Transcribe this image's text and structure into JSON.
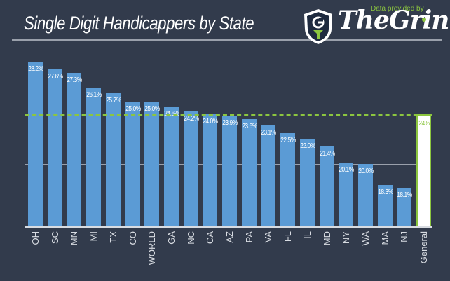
{
  "header": {
    "title": "Single Digit Handicappers by State",
    "credit": "Data provided by",
    "brand": "TheGrint"
  },
  "colors": {
    "background": "#323b4c",
    "bar": "#5b9bd5",
    "accent": "#8cc63f",
    "general_bar": "#ffffff",
    "gridline": "#9aa0ab"
  },
  "chart_data": {
    "type": "bar",
    "title": "Single Digit Handicappers by State",
    "xlabel": "",
    "ylabel": "",
    "ylim": [
      15,
      30
    ],
    "grid": true,
    "gridlines_at": [
      20,
      25
    ],
    "legend": null,
    "categories": [
      "OH",
      "SC",
      "MN",
      "MI",
      "TX",
      "CO",
      "WORLD",
      "GA",
      "NC",
      "CA",
      "AZ",
      "PA",
      "VA",
      "FL",
      "IL",
      "MD",
      "NY",
      "WA",
      "MA",
      "NJ",
      "General"
    ],
    "values": [
      28.2,
      27.6,
      27.3,
      26.1,
      25.7,
      25.0,
      25.0,
      24.6,
      24.2,
      24.0,
      23.9,
      23.6,
      23.1,
      22.5,
      22.0,
      21.4,
      20.1,
      20.0,
      18.3,
      18.1,
      24
    ],
    "value_labels": [
      "28.2%",
      "27.6%",
      "27.3%",
      "26.1%",
      "25.7%",
      "25.0%",
      "25.0%",
      "24.6%",
      "24.2%",
      "24.0%",
      "23.9%",
      "23.6%",
      "23.1%",
      "22.5%",
      "22.0%",
      "21.4%",
      "20.1%",
      "20.0%",
      "18.3%",
      "18.1%",
      "24%"
    ],
    "annotations": [
      {
        "type": "reference_line",
        "style": "dashed",
        "value": 24,
        "color": "#8cc63f",
        "label": "General 24%"
      }
    ],
    "highlighted_category": "General"
  }
}
